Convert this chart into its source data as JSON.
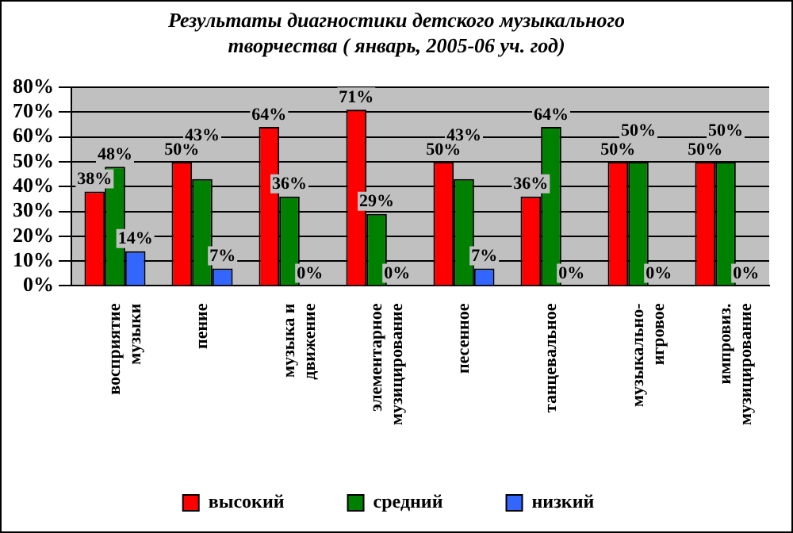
{
  "chart_data": {
    "type": "bar",
    "title": "Результаты диагностики детского музыкального творчества ( январь, 2005-06 уч. год)",
    "categories": [
      "восприятие музыки",
      "пение",
      "музыка и движение",
      "элементарное музицирование",
      "песенное",
      "танцевальное",
      "музыкально-игровое",
      "импровиз. музицирование"
    ],
    "series": [
      {
        "name": "высокий",
        "color": "#ff0000",
        "values": [
          38,
          50,
          64,
          71,
          50,
          36,
          50,
          50
        ],
        "value_labels": [
          "38%",
          "50%",
          "64%",
          "71%",
          "50%",
          "36%",
          "50%",
          "50%"
        ]
      },
      {
        "name": "средний",
        "color": "#008000",
        "values": [
          48,
          43,
          36,
          29,
          43,
          64,
          50,
          50
        ],
        "value_labels": [
          "48%",
          "43%",
          "36%",
          "29%",
          "43%",
          "64%",
          "50%",
          "50%"
        ]
      },
      {
        "name": "низкий",
        "color": "#3366ff",
        "values": [
          14,
          7,
          0,
          0,
          7,
          0,
          0,
          0
        ],
        "value_labels": [
          "14%",
          "7%",
          "0%",
          "0%",
          "7%",
          "0%",
          "0%",
          "0%"
        ]
      }
    ],
    "ylim": [
      0,
      80
    ],
    "yticks": [
      {
        "value": 0,
        "label": "0%"
      },
      {
        "value": 10,
        "label": "10%"
      },
      {
        "value": 20,
        "label": "20%"
      },
      {
        "value": 30,
        "label": "30%"
      },
      {
        "value": 40,
        "label": "40%"
      },
      {
        "value": 50,
        "label": "50%"
      },
      {
        "value": 60,
        "label": "60%"
      },
      {
        "value": 70,
        "label": "70%"
      },
      {
        "value": 80,
        "label": "80%"
      }
    ],
    "grid": "y",
    "legend": "bottom"
  }
}
